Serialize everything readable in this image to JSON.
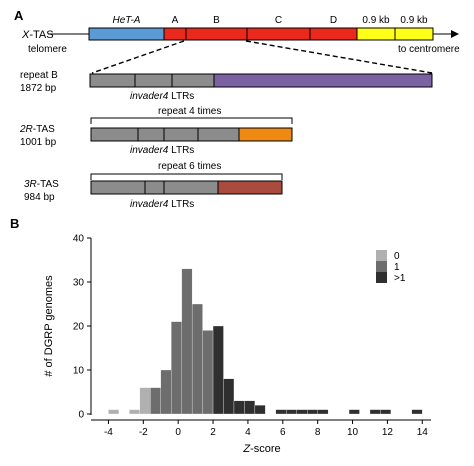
{
  "panel_a": {
    "label": "A",
    "x_tas": {
      "name_italic": "X",
      "name_rest": "-TAS",
      "telomere": "telomere",
      "to_centromere": "to centromere",
      "segments": [
        {
          "label": "HeT-A",
          "italic": true,
          "color": "#5b9bd5"
        },
        {
          "label": "A",
          "italic": false,
          "color": "#e8291c"
        },
        {
          "label": "B",
          "italic": false,
          "color": "#e8291c"
        },
        {
          "label": "C",
          "italic": false,
          "color": "#e8291c"
        },
        {
          "label": "D",
          "italic": false,
          "color": "#e8291c"
        },
        {
          "label": "0.9 kb",
          "italic": false,
          "color": "#ffff1a"
        },
        {
          "label": "0.9 kb",
          "italic": false,
          "color": "#ffff1a"
        }
      ]
    },
    "repeat_b": {
      "title": "repeat B",
      "size": "1872 bp",
      "ltr_italic": "invader4",
      "ltr_rest": " LTRs",
      "ltr_color": "#8c8c8c",
      "tail_color": "#7b62a3"
    },
    "tas_2r": {
      "name_italic": "2R",
      "name_rest": "-TAS",
      "size": "1001 bp",
      "repeat_note": "repeat 4 times",
      "ltr_italic": "invader4",
      "ltr_rest": " LTRs",
      "ltr_color": "#8c8c8c",
      "tail_color": "#ee8a12"
    },
    "tas_3r": {
      "name_italic": "3R",
      "name_rest": "-TAS",
      "size": "984 bp",
      "repeat_note": "repeat 6 times",
      "ltr_italic": "invader4",
      "ltr_rest": " LTRs",
      "ltr_color": "#8c8c8c",
      "tail_color": "#a94b3f"
    }
  },
  "panel_b": {
    "label": "B"
  },
  "chart_data": {
    "type": "bar",
    "xlabel_italic": "Z",
    "xlabel_rest": "-score",
    "ylabel": "# of DGRP genomes",
    "xlim": [
      -5,
      14.5
    ],
    "ylim": [
      0,
      40
    ],
    "xticks": [
      "-4",
      "-2",
      "0",
      "2",
      "4",
      "6",
      "8",
      "10",
      "12",
      "14"
    ],
    "yticks": [
      "0",
      "10",
      "20",
      "30",
      "40"
    ],
    "bin_width": 0.6,
    "legend_position": "top-right",
    "legend": [
      {
        "label": "0",
        "color": "#b0b0b0"
      },
      {
        "label": "1",
        "color": "#6d6d6d"
      },
      {
        "label": ">1",
        "color": "#2f2f2f"
      }
    ],
    "bins": [
      {
        "x": -3.7,
        "value": 1,
        "group": 0
      },
      {
        "x": -2.5,
        "value": 1,
        "group": 0
      },
      {
        "x": -1.9,
        "value": 6,
        "group": 0
      },
      {
        "x": -1.3,
        "value": 6,
        "group": 1
      },
      {
        "x": -0.7,
        "value": 10,
        "group": 1
      },
      {
        "x": -0.1,
        "value": 21,
        "group": 1
      },
      {
        "x": 0.5,
        "value": 33,
        "group": 1
      },
      {
        "x": 1.1,
        "value": 25,
        "group": 1
      },
      {
        "x": 1.7,
        "value": 19,
        "group": 1
      },
      {
        "x": 2.3,
        "value": 20,
        "group": 2
      },
      {
        "x": 2.9,
        "value": 8,
        "group": 2
      },
      {
        "x": 3.5,
        "value": 3,
        "group": 2
      },
      {
        "x": 4.1,
        "value": 3,
        "group": 2
      },
      {
        "x": 4.7,
        "value": 2,
        "group": 2
      },
      {
        "x": 5.9,
        "value": 1,
        "group": 2
      },
      {
        "x": 6.5,
        "value": 1,
        "group": 2
      },
      {
        "x": 7.1,
        "value": 1,
        "group": 2
      },
      {
        "x": 7.7,
        "value": 1,
        "group": 2
      },
      {
        "x": 8.3,
        "value": 1,
        "group": 2
      },
      {
        "x": 10.1,
        "value": 1,
        "group": 2
      },
      {
        "x": 11.3,
        "value": 1,
        "group": 2
      },
      {
        "x": 11.9,
        "value": 1,
        "group": 2
      },
      {
        "x": 13.7,
        "value": 1,
        "group": 2
      }
    ]
  }
}
